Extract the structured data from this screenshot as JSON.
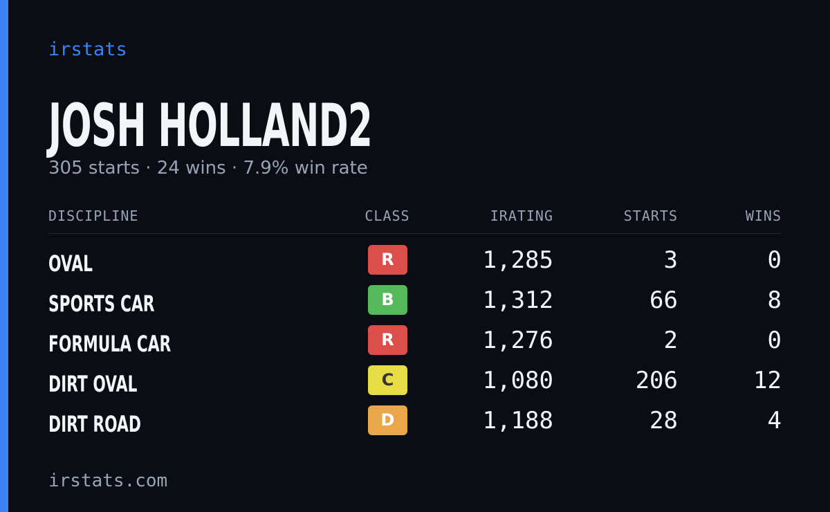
{
  "brand": "irstats",
  "header": {
    "title": "JOSH HOLLAND2",
    "subtitle": "305 starts · 24 wins · 7.9% win rate"
  },
  "table": {
    "columns": [
      "DISCIPLINE",
      "CLASS",
      "IRATING",
      "STARTS",
      "WINS"
    ],
    "rows": [
      [
        "OVAL",
        "R",
        "1,285",
        "3",
        "0"
      ],
      [
        "SPORTS CAR",
        "B",
        "1,312",
        "66",
        "8"
      ],
      [
        "FORMULA CAR",
        "R",
        "1,276",
        "2",
        "0"
      ],
      [
        "DIRT OVAL",
        "C",
        "1,080",
        "206",
        "12"
      ],
      [
        "DIRT ROAD",
        "D",
        "1,188",
        "28",
        "4"
      ]
    ],
    "class_colors": {
      "R": "#dc4e4a",
      "B": "#55b85a",
      "C": "#e6dc45",
      "D": "#eaa64a"
    }
  },
  "footer": "irstats.com"
}
